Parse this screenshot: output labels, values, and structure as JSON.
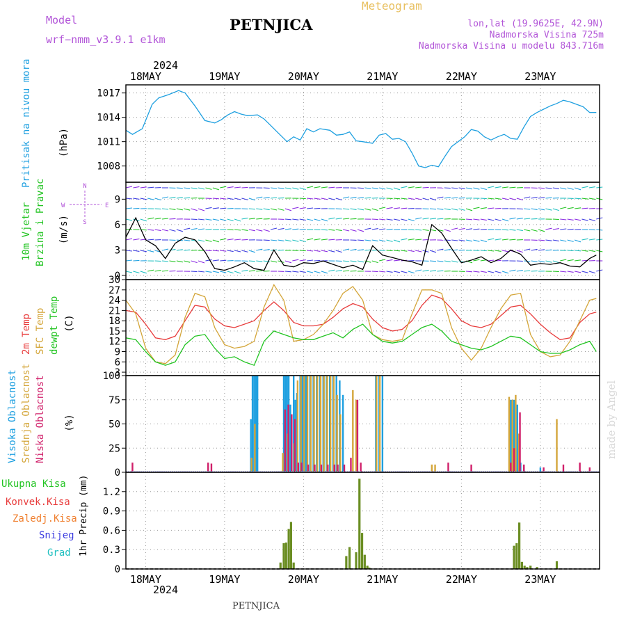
{
  "header": {
    "model_label": "Model",
    "model_value": "wrf−nmm_v3.9.1  e1km",
    "station": "PETNJICA",
    "meteogram": "Meteogram",
    "lonlat": "lon,lat (19.9625E, 42.9N)",
    "altitude": "Nadmorska Visina 725m",
    "model_altitude": "Nadmorska Visina u modelu 843.716m",
    "footer_station": "PETNJICA",
    "watermark": "made by Angel"
  },
  "colors": {
    "pressure": "#1fa0e0",
    "wind_speed": "#000000",
    "temp2m": "#e83c3c",
    "sfc_temp": "#d4a63a",
    "dewpoint": "#22c422",
    "high_cloud": "#1fa0e0",
    "mid_cloud": "#d4a63a",
    "low_cloud": "#d0206a",
    "precip": "#6b8e23",
    "precip_total": "#22c422",
    "conv": "#e83c3c",
    "frozen": "#f08030",
    "snow": "#3c3ce0",
    "hail": "#20c0c0"
  },
  "chart_data": [
    {
      "type": "line",
      "panel": "pressure",
      "ylabel_side": "Pritisak na nivou mora",
      "ylabel_unit": "(hPa)",
      "year_top": "2024",
      "ylim": [
        1006,
        1018
      ],
      "yticks": [
        1008,
        1011,
        1014,
        1017
      ],
      "x_labels": [
        "18MAY",
        "19MAY",
        "20MAY",
        "21MAY",
        "22MAY",
        "23MAY"
      ],
      "x_hours": [
        6,
        30,
        54,
        78,
        102,
        126
      ],
      "xlim": [
        0,
        144
      ],
      "series": [
        {
          "name": "Pritisak na nivou mora",
          "x": [
            0,
            2,
            5,
            8,
            10,
            13,
            16,
            18,
            21,
            24,
            27,
            29,
            31,
            33,
            35,
            37,
            40,
            42,
            44,
            46,
            49,
            51,
            53,
            55,
            57,
            59,
            62,
            64,
            66,
            68,
            70,
            72,
            75,
            77,
            79,
            81,
            83,
            85,
            87,
            89,
            91,
            93,
            95,
            97,
            99,
            101,
            103,
            105,
            107,
            109,
            111,
            113,
            115,
            117,
            119,
            121,
            123,
            125,
            127,
            129,
            131,
            133,
            135,
            137,
            139,
            141,
            143
          ],
          "values": [
            1012.4,
            1011.9,
            1012.6,
            1015.6,
            1016.4,
            1016.8,
            1017.3,
            1017.0,
            1015.4,
            1013.6,
            1013.3,
            1013.7,
            1014.3,
            1014.7,
            1014.4,
            1014.2,
            1014.3,
            1013.8,
            1013.0,
            1012.2,
            1011.0,
            1011.6,
            1011.2,
            1012.6,
            1012.2,
            1012.6,
            1012.4,
            1011.8,
            1011.9,
            1012.2,
            1011.1,
            1011.0,
            1010.8,
            1011.8,
            1012.0,
            1011.3,
            1011.4,
            1011.0,
            1009.6,
            1008.0,
            1007.8,
            1008.1,
            1007.9,
            1009.2,
            1010.4,
            1011.0,
            1011.6,
            1012.5,
            1012.3,
            1011.6,
            1011.2,
            1011.6,
            1011.9,
            1011.4,
            1011.3,
            1012.8,
            1014.1,
            1014.6,
            1015.0,
            1015.4,
            1015.7,
            1016.1,
            1015.9,
            1015.6,
            1015.3,
            1014.6,
            1014.6
          ]
        }
      ]
    },
    {
      "type": "line",
      "panel": "wind",
      "ylabel_side_1": "10m Vjetar",
      "ylabel_side_2": "Brzina i Pravac",
      "ylabel_unit": "(m/s)",
      "compass_n": "N",
      "compass_s": "S",
      "compass_w": "W",
      "compass_e": "E",
      "ylim": [
        -0.5,
        11
      ],
      "yticks": [
        0,
        3,
        6,
        9
      ],
      "series": [
        {
          "name": "10m Vjetar",
          "x": [
            0,
            3,
            6,
            9,
            12,
            15,
            18,
            21,
            24,
            27,
            30,
            33,
            36,
            39,
            42,
            45,
            48,
            51,
            54,
            57,
            60,
            63,
            66,
            69,
            72,
            75,
            78,
            81,
            84,
            87,
            90,
            93,
            96,
            99,
            102,
            105,
            108,
            111,
            114,
            117,
            120,
            123,
            126,
            129,
            132,
            135,
            138,
            141,
            143
          ],
          "values": [
            4.5,
            6.8,
            4.2,
            3.5,
            2.0,
            3.8,
            4.5,
            4.2,
            2.8,
            0.8,
            0.6,
            1.0,
            1.5,
            0.8,
            0.6,
            3.0,
            1.2,
            1.0,
            1.5,
            1.4,
            1.7,
            1.3,
            0.9,
            1.2,
            0.7,
            3.5,
            2.4,
            2.1,
            1.8,
            1.6,
            1.2,
            6.0,
            5.0,
            3.2,
            1.5,
            1.8,
            2.2,
            1.5,
            2.0,
            3.0,
            2.5,
            1.2,
            1.4,
            1.3,
            1.5,
            1.1,
            1.0,
            2.0,
            2.4
          ]
        }
      ]
    },
    {
      "type": "line",
      "panel": "temperature",
      "ylabel_side_1": "2m Temp",
      "ylabel_side_2": "SFC Temp",
      "ylabel_side_3": "dewpt Temp",
      "ylabel_unit": "(C)",
      "ylim": [
        2,
        30
      ],
      "yticks": [
        3,
        6,
        9,
        12,
        15,
        18,
        21,
        24,
        27,
        30
      ],
      "series": [
        {
          "name": "2m Temp",
          "x": [
            0,
            3,
            6,
            9,
            12,
            15,
            18,
            21,
            24,
            27,
            30,
            33,
            36,
            39,
            42,
            45,
            48,
            51,
            54,
            57,
            60,
            63,
            66,
            69,
            72,
            75,
            78,
            81,
            84,
            87,
            90,
            93,
            96,
            99,
            102,
            105,
            108,
            111,
            114,
            117,
            120,
            123,
            126,
            129,
            132,
            135,
            138,
            141,
            143
          ],
          "values": [
            21,
            20.5,
            17,
            13,
            12.5,
            13.5,
            18,
            22.5,
            22,
            18.5,
            16.5,
            16,
            17,
            18,
            21,
            23.5,
            21,
            17.5,
            16.5,
            16.5,
            17,
            19,
            21.5,
            23,
            22,
            18.5,
            16,
            15,
            15.5,
            18,
            22.5,
            25.5,
            24.5,
            21.5,
            18,
            16.5,
            16,
            17,
            19.5,
            22,
            22.5,
            20,
            17,
            14.5,
            12.5,
            13,
            17.5,
            20,
            20.5
          ]
        },
        {
          "name": "SFC Temp",
          "x": [
            0,
            3,
            6,
            9,
            12,
            15,
            18,
            21,
            24,
            27,
            30,
            33,
            36,
            39,
            42,
            45,
            48,
            51,
            54,
            57,
            60,
            63,
            66,
            69,
            72,
            75,
            78,
            81,
            84,
            87,
            90,
            93,
            96,
            99,
            102,
            105,
            108,
            111,
            114,
            117,
            120,
            123,
            126,
            129,
            132,
            135,
            138,
            141,
            143
          ],
          "values": [
            24,
            20,
            10,
            6,
            5.5,
            8,
            19,
            26,
            25,
            16,
            11,
            10,
            10.5,
            12,
            22,
            28.5,
            24,
            12,
            12.5,
            14,
            17,
            21,
            26,
            28,
            24,
            14,
            12.5,
            12,
            12.5,
            20,
            27,
            27,
            26,
            16,
            10,
            6.5,
            10,
            16,
            21.5,
            25.5,
            26,
            14,
            9,
            7.5,
            8,
            12,
            18,
            24,
            24.5
          ]
        },
        {
          "name": "dewpt Temp",
          "x": [
            0,
            3,
            6,
            9,
            12,
            15,
            18,
            21,
            24,
            27,
            30,
            33,
            36,
            39,
            42,
            45,
            48,
            51,
            54,
            57,
            60,
            63,
            66,
            69,
            72,
            75,
            78,
            81,
            84,
            87,
            90,
            93,
            96,
            99,
            102,
            105,
            108,
            111,
            114,
            117,
            120,
            123,
            126,
            129,
            132,
            135,
            138,
            141,
            143
          ],
          "values": [
            13,
            12.5,
            9,
            6,
            5,
            6,
            11,
            13.5,
            14,
            10,
            7,
            7.5,
            6,
            5,
            12,
            15,
            14,
            13,
            12.5,
            12.5,
            13.5,
            14.5,
            13,
            15.5,
            17,
            14,
            12,
            11.5,
            12,
            14,
            16,
            17,
            15,
            12,
            11,
            10,
            9.5,
            10.5,
            12,
            13.5,
            13,
            11,
            9,
            8.5,
            8.5,
            9.5,
            11,
            12,
            9
          ]
        }
      ]
    },
    {
      "type": "bar",
      "panel": "clouds",
      "ylabel_side_1": "Visoka Oblacnost",
      "ylabel_side_2": "Srednja Oblacnost",
      "ylabel_side_3": "Niska  Oblacnost",
      "ylabel_unit": "(%)",
      "ylim": [
        0,
        100
      ],
      "yticks": [
        0,
        25,
        50,
        75,
        100
      ],
      "series": [
        {
          "name": "Visoka Oblacnost",
          "x": [
            38,
            38.5,
            39,
            39.5,
            40,
            48,
            48.5,
            49,
            49.5,
            50,
            51,
            51.5,
            52,
            53,
            53.5,
            54,
            54.5,
            55,
            56,
            57,
            58,
            59,
            60,
            61,
            62,
            63,
            64,
            65,
            66,
            76,
            77,
            78,
            117,
            118,
            119,
            120,
            121,
            126
          ],
          "values": [
            55,
            100,
            100,
            100,
            100,
            100,
            100,
            100,
            100,
            70,
            100,
            75,
            82,
            100,
            100,
            100,
            100,
            100,
            100,
            100,
            100,
            100,
            100,
            100,
            100,
            100,
            100,
            95,
            80,
            100,
            100,
            100,
            75,
            75,
            70,
            10,
            5,
            5
          ]
        },
        {
          "name": "Srednja Oblacnost",
          "x": [
            38.2,
            39.2,
            47.7,
            49.2,
            51.2,
            52.2,
            53.2,
            54.2,
            55.2,
            56.2,
            57.2,
            58.2,
            59.2,
            60.2,
            61.2,
            62.2,
            63.2,
            64.2,
            65.2,
            69,
            70,
            76.2,
            77.2,
            93,
            94,
            116.5,
            117.5,
            118.5,
            119.5,
            131
          ],
          "values": [
            15,
            50,
            20,
            40,
            30,
            95,
            100,
            100,
            100,
            100,
            100,
            100,
            100,
            100,
            100,
            100,
            100,
            80,
            60,
            85,
            75,
            100,
            100,
            8,
            8,
            78,
            75,
            80,
            40,
            55
          ]
        },
        {
          "name": "Niska  Oblacnost",
          "x": [
            2,
            25,
            26,
            48.4,
            49.4,
            50.4,
            51.4,
            52.4,
            53.4,
            55.4,
            57.4,
            59.4,
            61.4,
            63.4,
            64.4,
            66.4,
            68.4,
            70.4,
            71.4,
            98,
            105,
            117,
            118,
            119.8,
            121,
            127,
            133,
            138,
            141
          ],
          "values": [
            10,
            10,
            9,
            65,
            70,
            60,
            55,
            10,
            10,
            8,
            8,
            8,
            8,
            8,
            8,
            8,
            15,
            75,
            10,
            10,
            8,
            10,
            25,
            62,
            8,
            5,
            8,
            10,
            5
          ]
        }
      ]
    },
    {
      "type": "bar",
      "panel": "precip",
      "legend": [
        "Ukupna  Kisa",
        "Konvek.Kisa",
        "Zaledj.Kisa",
        "Snijeg",
        "Grad"
      ],
      "ylabel_unit": "1hr Precip (mm)",
      "year_bottom": "2024",
      "ylim": [
        0,
        1.5
      ],
      "yticks": [
        0,
        0.3,
        0.6,
        0.9,
        1.2
      ],
      "series": [
        {
          "name": "Ukupna  Kisa",
          "x": [
            47,
            48,
            48.7,
            49.5,
            50.2,
            51,
            67,
            68,
            70,
            71,
            71.8,
            72.6,
            73.4,
            74,
            118,
            118.8,
            119.6,
            120.4,
            121.2,
            122,
            123,
            125,
            131
          ],
          "values": [
            0.1,
            0.4,
            0.41,
            0.62,
            0.73,
            0.1,
            0.2,
            0.34,
            0.26,
            1.4,
            0.56,
            0.22,
            0.05,
            0.02,
            0.36,
            0.4,
            0.72,
            0.11,
            0.05,
            0.03,
            0.05,
            0.03,
            0.12
          ]
        }
      ]
    }
  ]
}
